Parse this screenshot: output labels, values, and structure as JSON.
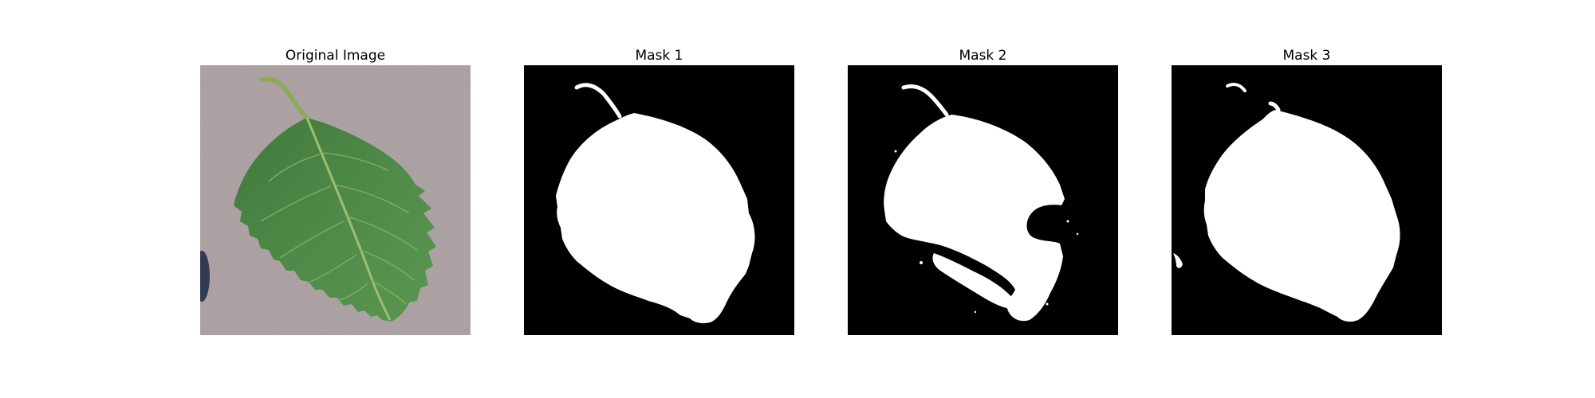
{
  "figure": {
    "panels": [
      {
        "title": "Original Image",
        "kind": "photo"
      },
      {
        "title": "Mask 1",
        "kind": "mask"
      },
      {
        "title": "Mask 2",
        "kind": "mask"
      },
      {
        "title": "Mask 3",
        "kind": "mask"
      }
    ]
  },
  "colors": {
    "background": "#ffffff",
    "mask_background": "#000000",
    "mask_foreground": "#ffffff",
    "photo_background": "#b3a8a9",
    "leaf_green": "#4f8a48",
    "leaf_dark": "#3f7539",
    "leaf_vein": "#9cbf72",
    "stem": "#8fa95a"
  }
}
